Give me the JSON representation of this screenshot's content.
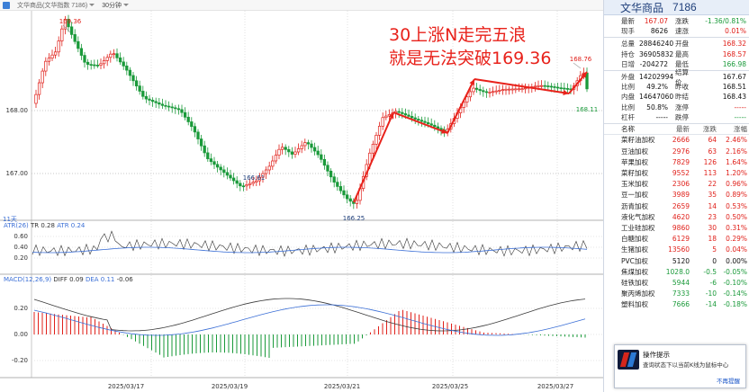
{
  "toolbar": {
    "product": "文华商品(文华指数 7186)",
    "period": "30分钟"
  },
  "annotation": {
    "line1": "30上涨N走完五浪",
    "line2": "就是无法突破169.36"
  },
  "price_chart": {
    "y_ticks": [
      "168.00",
      "167.00"
    ],
    "high_label": "169.36",
    "low_label_1": "166.61",
    "low_label_2": "166.25",
    "right_high_label": "168.76",
    "last_label": "168.11",
    "bars_label": "11天"
  },
  "atr_panel": {
    "title": "ATR(26)",
    "tr": "TR 0.28",
    "atr": "ATR 0.24",
    "y_ticks": [
      "0.60",
      "0.40",
      "0.20"
    ]
  },
  "macd_panel": {
    "title": "MACD(12,26,9)",
    "diff": "DIFF 0.09",
    "dea": "DEA 0.11",
    "macd": "-0.06",
    "y_ticks": [
      "0.20",
      "0.00",
      "-0.20"
    ]
  },
  "x_axis": [
    "2025/03/17",
    "2025/03/19",
    "2025/03/21",
    "2025/03/25",
    "2025/03/27"
  ],
  "quote": {
    "name": "文华商品",
    "code": "7186",
    "groups": [
      [
        {
          "l1": "最新",
          "v1": "167.07",
          "c1": "red",
          "l2": "涨跌",
          "v2": "-1.36/0.81%",
          "c2": "green"
        },
        {
          "l1": "现手",
          "v1": "8626",
          "c1": "blk",
          "l2": "速涨",
          "v2": "0.01%",
          "c2": "red"
        }
      ],
      [
        {
          "l1": "总量",
          "v1": "28846240",
          "c1": "blk",
          "l2": "开盘",
          "v2": "168.32",
          "c2": "red"
        },
        {
          "l1": "持仓",
          "v1": "36905832",
          "c1": "blk",
          "l2": "最高",
          "v2": "168.57",
          "c2": "red"
        },
        {
          "l1": "日增",
          "v1": "-204272",
          "c1": "blk",
          "l2": "最低",
          "v2": "166.98",
          "c2": "green"
        }
      ],
      [
        {
          "l1": "外盘",
          "v1": "14202994",
          "c1": "blk",
          "l2": "结算价",
          "v2": "167.67",
          "c2": "blk"
        },
        {
          "l1": "比例",
          "v1": "49.2%",
          "c1": "blk",
          "l2": "昨收",
          "v2": "168.51",
          "c2": "blk"
        },
        {
          "l1": "内盘",
          "v1": "14647060",
          "c1": "blk",
          "l2": "昨结",
          "v2": "168.43",
          "c2": "blk"
        },
        {
          "l1": "比例",
          "v1": "50.8%",
          "c1": "blk",
          "l2": "涨停",
          "v2": "-----",
          "c2": "red"
        },
        {
          "l1": "杠杆",
          "v1": "-----",
          "c1": "blk",
          "l2": "跌停",
          "v2": "-----",
          "c2": "green"
        }
      ]
    ]
  },
  "list": {
    "headers": [
      "名称",
      "最新",
      "涨跌",
      "涨幅"
    ],
    "rows": [
      {
        "name": "菜籽油加权",
        "price": "2666",
        "chg": "64",
        "pct": "2.46%",
        "color": "red"
      },
      {
        "name": "豆油加权",
        "price": "2976",
        "chg": "63",
        "pct": "2.16%",
        "color": "red"
      },
      {
        "name": "苹果加权",
        "price": "7829",
        "chg": "126",
        "pct": "1.64%",
        "color": "red"
      },
      {
        "name": "菜籽加权",
        "price": "9552",
        "chg": "113",
        "pct": "1.20%",
        "color": "red"
      },
      {
        "name": "玉米加权",
        "price": "2306",
        "chg": "22",
        "pct": "0.96%",
        "color": "red"
      },
      {
        "name": "豆一加权",
        "price": "3989",
        "chg": "35",
        "pct": "0.89%",
        "color": "red"
      },
      {
        "name": "沥青加权",
        "price": "2659",
        "chg": "14",
        "pct": "0.53%",
        "color": "red"
      },
      {
        "name": "液化气加权",
        "price": "4620",
        "chg": "23",
        "pct": "0.50%",
        "color": "red"
      },
      {
        "name": "工业硅加权",
        "price": "9860",
        "chg": "30",
        "pct": "0.31%",
        "color": "red"
      },
      {
        "name": "白糖加权",
        "price": "6129",
        "chg": "18",
        "pct": "0.29%",
        "color": "red"
      },
      {
        "name": "生猪加权",
        "price": "13560",
        "chg": "5",
        "pct": "0.04%",
        "color": "red"
      },
      {
        "name": "PVC加权",
        "price": "5120",
        "chg": "0",
        "pct": "0.00%",
        "color": "blk"
      },
      {
        "name": "焦煤加权",
        "price": "1028.0",
        "chg": "-0.5",
        "pct": "-0.05%",
        "color": "green"
      },
      {
        "name": "硅铁加权",
        "price": "5944",
        "chg": "-6",
        "pct": "-0.10%",
        "color": "green"
      },
      {
        "name": "聚丙烯加权",
        "price": "7333",
        "chg": "-10",
        "pct": "-0.14%",
        "color": "green"
      },
      {
        "name": "塑料加权",
        "price": "7666",
        "chg": "-14",
        "pct": "-0.18%",
        "color": "green"
      }
    ]
  },
  "popup": {
    "title": "操作提示",
    "text": "查询状态下以当前K线为鼠标中心",
    "link": "不再提醒"
  },
  "colors": {
    "up": "#e0201a",
    "down": "#1a9a3a",
    "annotation": "#e8221b",
    "diff_line": "#3a3a3a",
    "dea_line": "#3b6fd6"
  }
}
